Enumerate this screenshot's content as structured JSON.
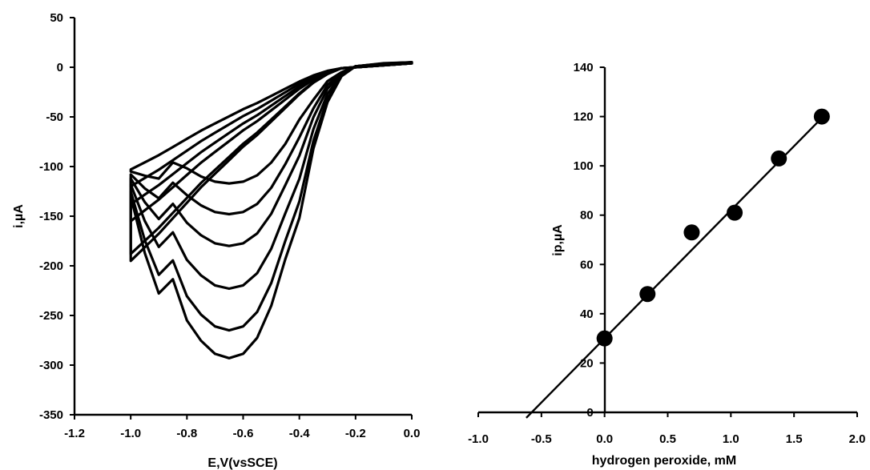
{
  "chart_data": [
    {
      "type": "line",
      "title": "",
      "xlabel": "E,V(vsSCE)",
      "ylabel": "i,µA",
      "xlim": [
        -1.2,
        0.0
      ],
      "ylim": [
        -350,
        50
      ],
      "x_ticks": [
        "-1.2",
        "-1.0",
        "-0.8",
        "-0.6",
        "-0.4",
        "-0.2",
        "0.0"
      ],
      "y_ticks": [
        "50",
        "0",
        "-50",
        "-100",
        "-150",
        "-200",
        "-250",
        "-300",
        "-350"
      ],
      "grid": false,
      "legend": "none",
      "description_of_series": "cyclic voltammograms",
      "series": [
        {
          "peak_E": -0.65,
          "peak_i": -117,
          "start_i": -105,
          "return_i": -103
        },
        {
          "peak_E": -0.65,
          "peak_i": -148,
          "start_i": -108,
          "return_i": -120
        },
        {
          "peak_E": -0.65,
          "peak_i": -180,
          "start_i": -112,
          "return_i": -138
        },
        {
          "peak_E": -0.65,
          "peak_i": -223,
          "start_i": -118,
          "return_i": -155
        },
        {
          "peak_E": -0.65,
          "peak_i": -265,
          "start_i": -125,
          "return_i": -188
        },
        {
          "peak_E": -0.65,
          "peak_i": -293,
          "start_i": -130,
          "return_i": -195
        }
      ]
    },
    {
      "type": "scatter",
      "title": "",
      "xlabel": "hydrogen peroxide, mM",
      "ylabel": "ip,µA",
      "xlim": [
        -1.0,
        2.0
      ],
      "ylim": [
        0,
        140
      ],
      "x_ticks": [
        "-1.0",
        "-0.5",
        "0.0",
        "0.5",
        "1.0",
        "1.5",
        "2.0"
      ],
      "y_ticks": [
        "0",
        "20",
        "40",
        "60",
        "80",
        "100",
        "120",
        "140"
      ],
      "grid": false,
      "legend": "none",
      "points": [
        {
          "x": 0.0,
          "y": 30
        },
        {
          "x": 0.34,
          "y": 48
        },
        {
          "x": 0.69,
          "y": 73
        },
        {
          "x": 1.03,
          "y": 81
        },
        {
          "x": 1.38,
          "y": 103
        },
        {
          "x": 1.72,
          "y": 120
        }
      ],
      "fit_line": {
        "x_start": -0.62,
        "x_end": 1.72,
        "slope": 52.0,
        "intercept": 30.0
      }
    }
  ]
}
